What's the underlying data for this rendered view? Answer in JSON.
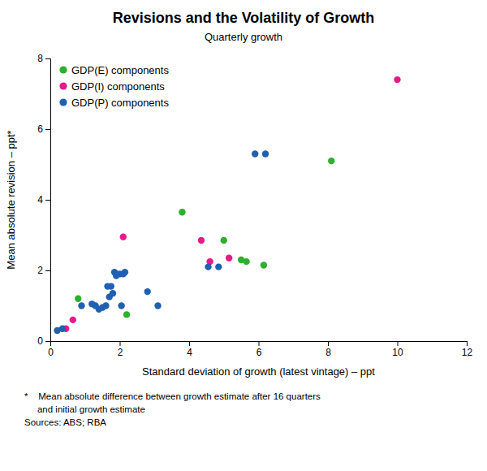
{
  "chart_data": {
    "type": "scatter",
    "title": "Revisions and the Volatility of Growth",
    "subtitle": "Quarterly growth",
    "x_label": "Standard deviation of growth (latest vintage) – ppt",
    "y_label": "Mean absolute revision – ppt*",
    "annotations": [
      "*    Mean absolute difference between growth estimate after 16 quarters",
      "     and initial growth estimate",
      "Sources: ABS; RBA"
    ],
    "xlim": [
      0,
      12
    ],
    "ylim": [
      0,
      8
    ],
    "xticks": [
      0,
      2,
      4,
      6,
      8,
      10,
      12
    ],
    "yticks": [
      0,
      2,
      4,
      6,
      8
    ],
    "legend": "upper left",
    "grid": false,
    "series": [
      {
        "name": "GDP(E) components",
        "color": "#2db02d",
        "x": [
          0.8,
          2.2,
          3.8,
          5.0,
          5.5,
          5.65,
          6.15,
          8.1
        ],
        "values": [
          1.2,
          0.75,
          3.65,
          2.85,
          2.3,
          2.25,
          2.15,
          5.1
        ]
      },
      {
        "name": "GDP(I) components",
        "color": "#e8198b",
        "x": [
          0.45,
          0.65,
          2.1,
          4.35,
          4.6,
          5.15,
          10.0
        ],
        "values": [
          0.35,
          0.6,
          2.95,
          2.85,
          2.25,
          2.35,
          7.4
        ]
      },
      {
        "name": "GDP(P) components",
        "color": "#2060b0",
        "x": [
          0.2,
          0.35,
          0.9,
          1.2,
          1.3,
          1.4,
          1.5,
          1.6,
          1.65,
          1.7,
          1.75,
          1.8,
          1.85,
          1.9,
          2.0,
          2.05,
          2.1,
          2.15,
          2.8,
          3.1,
          4.55,
          4.85,
          5.9,
          6.2
        ],
        "values": [
          0.3,
          0.35,
          1.0,
          1.05,
          1.0,
          0.9,
          0.95,
          1.0,
          1.55,
          1.25,
          1.55,
          1.35,
          1.95,
          1.85,
          1.9,
          1.0,
          1.9,
          1.95,
          1.4,
          1.0,
          2.1,
          2.1,
          5.3,
          5.3
        ]
      }
    ]
  }
}
